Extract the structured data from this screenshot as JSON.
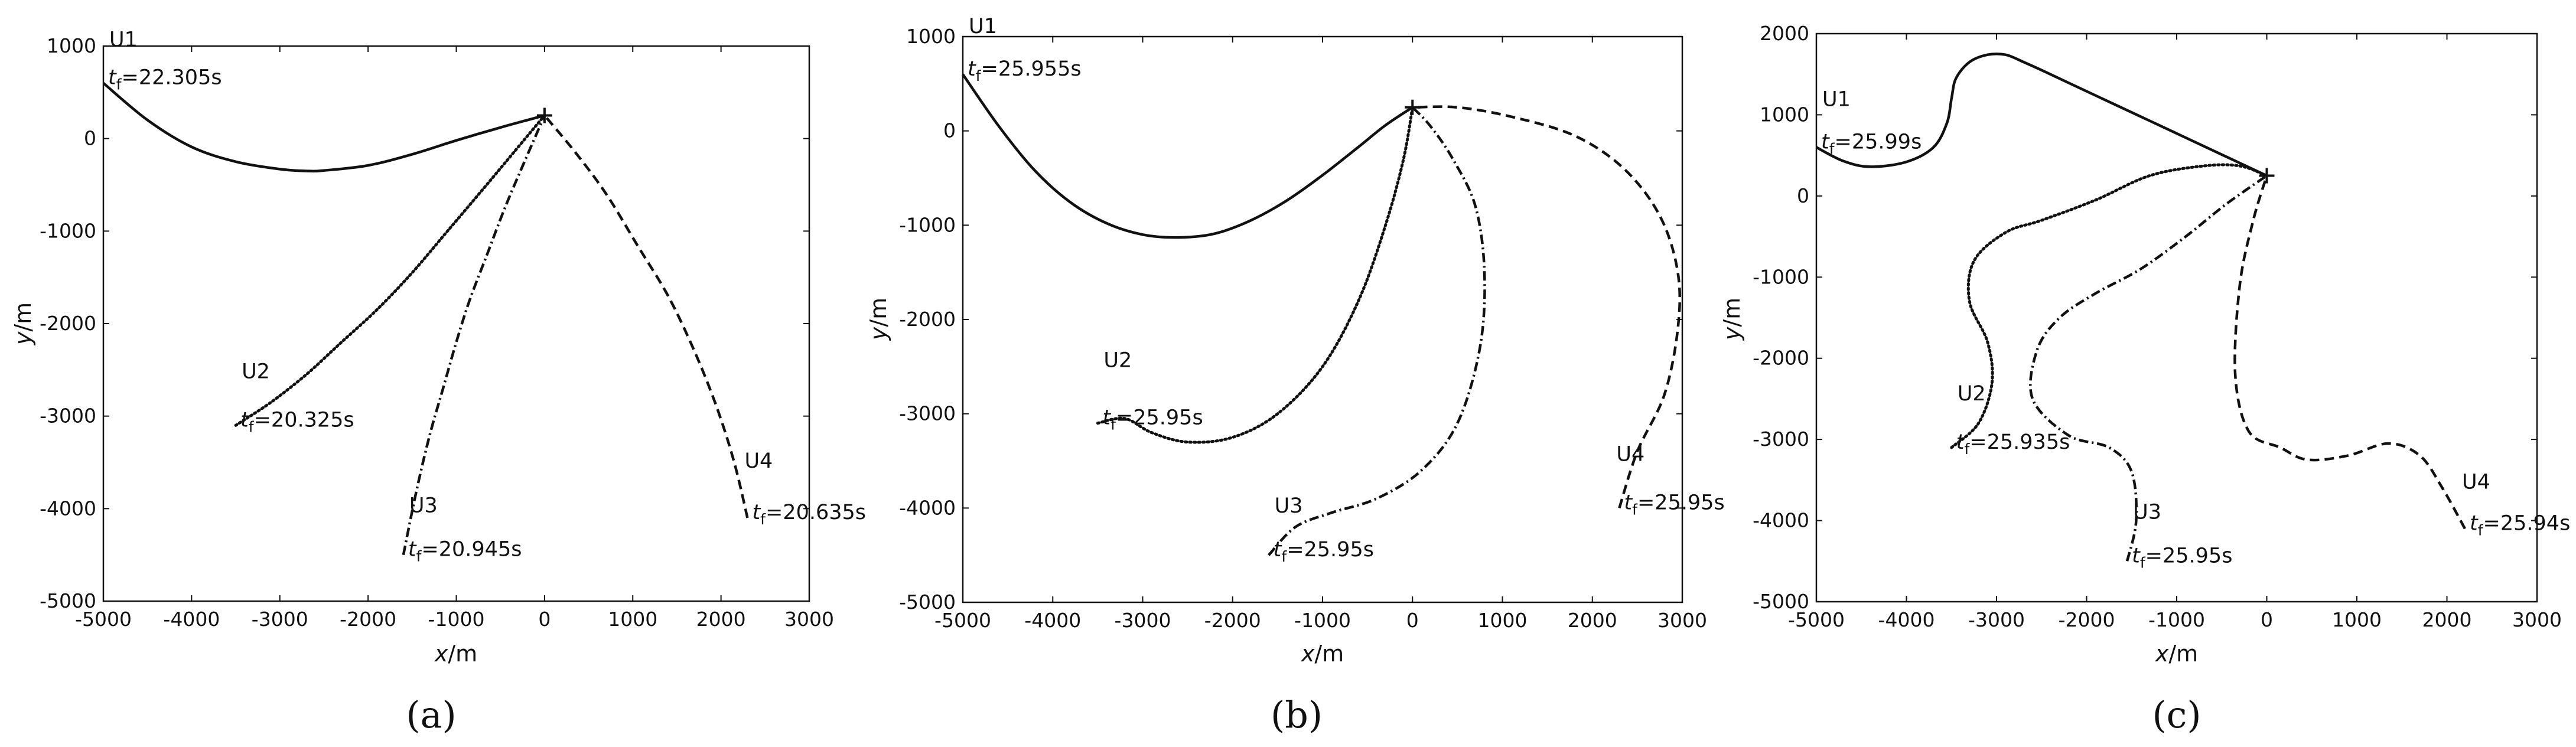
{
  "chart_data": [
    {
      "type": "line",
      "panel_label": "(a)",
      "xlabel_var": "x",
      "xlabel_unit": "/m",
      "ylabel_var": "y",
      "ylabel_unit": "/m",
      "xlim": [
        -5000,
        3000
      ],
      "ylim": [
        -5000,
        1000
      ],
      "xticks": [
        -5000,
        -4000,
        -3000,
        -2000,
        -1000,
        0,
        1000,
        2000,
        3000
      ],
      "yticks": [
        1000,
        0,
        -1000,
        -2000,
        -3000,
        -4000,
        -5000
      ],
      "grid": false,
      "legend": "none",
      "target": [
        0,
        250
      ],
      "series": [
        {
          "name": "U1",
          "style": "solid",
          "final_time": "22.305s",
          "x": [
            -5000,
            -4500,
            -4000,
            -3500,
            -3000,
            -2700,
            -2500,
            -2000,
            -1500,
            -1000,
            -500,
            0
          ],
          "y": [
            600,
            200,
            -90,
            -250,
            -330,
            -350,
            -345,
            -290,
            -170,
            -20,
            120,
            250
          ]
        },
        {
          "name": "U2",
          "style": "dotted",
          "final_time": "20.325s",
          "x": [
            -3500,
            -3100,
            -2700,
            -2300,
            -1900,
            -1500,
            -1100,
            -700,
            -350,
            0
          ],
          "y": [
            -3100,
            -2850,
            -2550,
            -2200,
            -1850,
            -1450,
            -1000,
            -550,
            -150,
            250
          ]
        },
        {
          "name": "U3",
          "style": "dashdot",
          "final_time": "20.945s",
          "x": [
            -1600,
            -1450,
            -1300,
            -1150,
            -1000,
            -850,
            -650,
            -450,
            -250,
            0
          ],
          "y": [
            -4500,
            -3800,
            -3200,
            -2700,
            -2200,
            -1750,
            -1250,
            -750,
            -300,
            250
          ]
        },
        {
          "name": "U4",
          "style": "dashed",
          "final_time": "20.635s",
          "x": [
            2300,
            2150,
            1950,
            1700,
            1400,
            1050,
            700,
            350,
            0
          ],
          "y": [
            -4100,
            -3500,
            -2900,
            -2300,
            -1700,
            -1150,
            -600,
            -150,
            250
          ]
        }
      ]
    },
    {
      "type": "line",
      "panel_label": "(b)",
      "xlabel_var": "x",
      "xlabel_unit": "/m",
      "ylabel_var": "y",
      "ylabel_unit": "/m",
      "xlim": [
        -5000,
        3000
      ],
      "ylim": [
        -5000,
        1000
      ],
      "xticks": [
        -5000,
        -4000,
        -3000,
        -2000,
        -1000,
        0,
        1000,
        2000,
        3000
      ],
      "yticks": [
        1000,
        0,
        -1000,
        -2000,
        -3000,
        -4000,
        -5000
      ],
      "grid": false,
      "legend": "none",
      "target": [
        0,
        250
      ],
      "series": [
        {
          "name": "U1",
          "style": "solid",
          "final_time": "25.955s",
          "x": [
            -5000,
            -4600,
            -4200,
            -3800,
            -3400,
            -3000,
            -2600,
            -2200,
            -1800,
            -1400,
            -1000,
            -600,
            -300,
            0
          ],
          "y": [
            600,
            50,
            -420,
            -760,
            -980,
            -1100,
            -1130,
            -1090,
            -950,
            -740,
            -470,
            -170,
            60,
            250
          ]
        },
        {
          "name": "U2",
          "style": "dotted",
          "final_time": "25.95s",
          "x": [
            -3500,
            -3200,
            -2900,
            -2500,
            -2000,
            -1500,
            -1000,
            -600,
            -300,
            -100,
            0
          ],
          "y": [
            -3100,
            -3050,
            -3200,
            -3300,
            -3250,
            -3000,
            -2500,
            -1800,
            -1000,
            -300,
            250
          ]
        },
        {
          "name": "U3",
          "style": "dashdot",
          "final_time": "25.95s",
          "x": [
            -1600,
            -1300,
            -900,
            -400,
            100,
            500,
            750,
            800,
            700,
            450,
            200,
            0
          ],
          "y": [
            -4500,
            -4200,
            -4050,
            -3900,
            -3600,
            -3100,
            -2300,
            -1500,
            -800,
            -300,
            50,
            250
          ]
        },
        {
          "name": "U4",
          "style": "dashed",
          "final_time": "25.95s",
          "x": [
            2300,
            2500,
            2800,
            2950,
            2950,
            2750,
            2350,
            1800,
            1100,
            500,
            0
          ],
          "y": [
            -4000,
            -3400,
            -2800,
            -2100,
            -1500,
            -900,
            -400,
            -50,
            150,
            250,
            250
          ]
        }
      ]
    },
    {
      "type": "line",
      "panel_label": "(c)",
      "xlabel_var": "x",
      "xlabel_unit": "/m",
      "ylabel_var": "y",
      "ylabel_unit": "/m",
      "xlim": [
        -5000,
        3000
      ],
      "ylim": [
        -5000,
        2000
      ],
      "xticks": [
        -5000,
        -4000,
        -3000,
        -2000,
        -1000,
        0,
        1000,
        2000,
        3000
      ],
      "yticks": [
        2000,
        1000,
        0,
        -1000,
        -2000,
        -3000,
        -4000,
        -5000
      ],
      "grid": false,
      "legend": "none",
      "target": [
        0,
        250
      ],
      "series": [
        {
          "name": "U1",
          "style": "solid",
          "final_time": "25.99s",
          "x": [
            -5000,
            -4700,
            -4400,
            -4000,
            -3700,
            -3550,
            -3500,
            -3450,
            -3300,
            -3100,
            -2900,
            -2700,
            -2500,
            -2000,
            -1500,
            -1000,
            -500,
            0
          ],
          "y": [
            600,
            430,
            360,
            420,
            600,
            900,
            1200,
            1450,
            1650,
            1740,
            1740,
            1650,
            1550,
            1290,
            1030,
            770,
            510,
            250
          ]
        },
        {
          "name": "U2",
          "style": "dotted",
          "final_time": "25.935s",
          "x": [
            -3500,
            -3200,
            -3050,
            -3100,
            -3300,
            -3250,
            -2900,
            -2500,
            -1900,
            -1300,
            -700,
            -300,
            0
          ],
          "y": [
            -3100,
            -2800,
            -2300,
            -1800,
            -1300,
            -800,
            -450,
            -300,
            -50,
            250,
            370,
            370,
            250
          ]
        },
        {
          "name": "U3",
          "style": "dashdot",
          "final_time": "25.95s",
          "x": [
            -1550,
            -1450,
            -1500,
            -1750,
            -2200,
            -2600,
            -2550,
            -2300,
            -1900,
            -1400,
            -900,
            -450,
            0
          ],
          "y": [
            -4500,
            -4000,
            -3400,
            -3100,
            -2950,
            -2500,
            -1900,
            -1500,
            -1200,
            -900,
            -500,
            -100,
            250
          ]
        },
        {
          "name": "U4",
          "style": "dashed",
          "final_time": "25.94s",
          "x": [
            2200,
            1950,
            1700,
            1350,
            900,
            450,
            150,
            -200,
            -350,
            -300,
            -150,
            0
          ],
          "y": [
            -4100,
            -3600,
            -3200,
            -3050,
            -3200,
            -3250,
            -3100,
            -2900,
            -2200,
            -1100,
            -300,
            250
          ]
        }
      ]
    }
  ]
}
